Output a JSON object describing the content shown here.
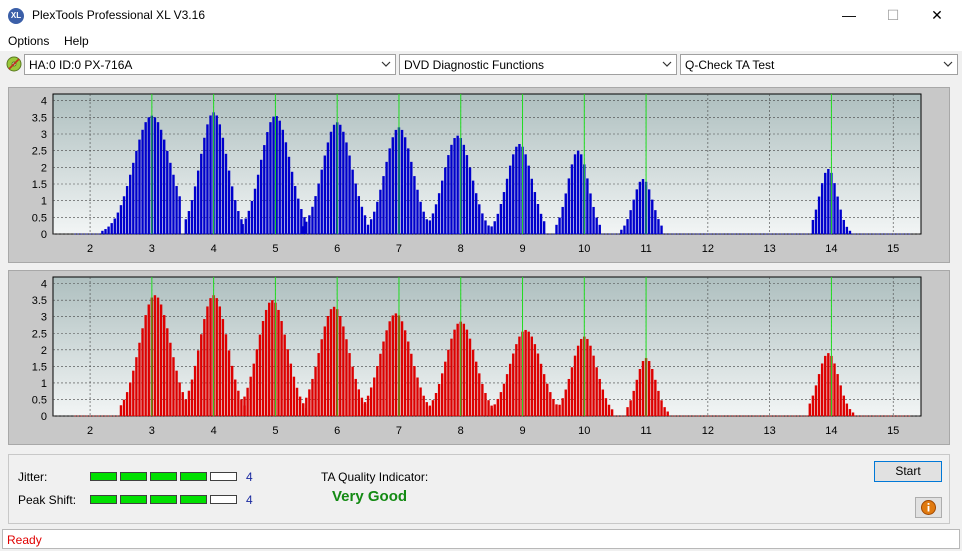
{
  "window": {
    "title": "PlexTools Professional XL V3.16",
    "app_icon_text": "XL"
  },
  "menu": {
    "items": [
      "Options",
      "Help"
    ]
  },
  "toolbar": {
    "drive": "HA:0 ID:0  PX-716A",
    "function": "DVD Diagnostic Functions",
    "test": "Q-Check TA Test"
  },
  "chart_data": [
    {
      "type": "bar",
      "series": [
        {
          "name": "",
          "color": "#0000cc"
        }
      ],
      "x_ticks": [
        2,
        3,
        4,
        5,
        6,
        7,
        8,
        9,
        10,
        11,
        12,
        13,
        14,
        15
      ],
      "y_ticks": [
        "0",
        "0.5",
        "1",
        "1.5",
        "2",
        "2.5",
        "3",
        "3.5",
        "4"
      ],
      "xlim": [
        1.4,
        15.45
      ],
      "ylim": [
        0,
        4.2
      ],
      "groups": [
        {
          "center": 3.0,
          "start": 2.2,
          "end": 3.45,
          "peak": 3.55
        },
        {
          "center": 4.0,
          "start": 3.55,
          "end": 4.47,
          "peak": 3.65
        },
        {
          "center": 5.0,
          "start": 4.47,
          "end": 5.47,
          "peak": 3.55
        },
        {
          "center": 6.0,
          "start": 5.45,
          "end": 6.45,
          "peak": 3.35
        },
        {
          "center": 7.0,
          "start": 6.5,
          "end": 7.45,
          "peak": 3.2
        },
        {
          "center": 7.95,
          "start": 7.5,
          "end": 8.45,
          "peak": 2.95
        },
        {
          "center": 8.95,
          "start": 8.5,
          "end": 9.35,
          "peak": 2.7
        },
        {
          "center": 9.9,
          "start": 9.55,
          "end": 10.25,
          "peak": 2.5
        },
        {
          "center": 10.95,
          "start": 10.6,
          "end": 11.25,
          "peak": 1.65
        },
        {
          "center": 13.95,
          "start": 13.7,
          "end": 14.3,
          "peak": 1.95
        }
      ],
      "green_lines": [
        3,
        4,
        5,
        6,
        7,
        8,
        9,
        10,
        11,
        14
      ]
    },
    {
      "type": "bar",
      "series": [
        {
          "name": "",
          "color": "#dd0000"
        }
      ],
      "x_ticks": [
        2,
        3,
        4,
        5,
        6,
        7,
        8,
        9,
        10,
        11,
        12,
        13,
        14,
        15
      ],
      "y_ticks": [
        "0",
        "0.5",
        "1",
        "1.5",
        "2",
        "2.5",
        "3",
        "3.5",
        "4"
      ],
      "xlim": [
        1.4,
        15.45
      ],
      "ylim": [
        0,
        4.2
      ],
      "groups": [
        {
          "center": 3.05,
          "start": 2.5,
          "end": 3.55,
          "peak": 3.65
        },
        {
          "center": 4.0,
          "start": 3.55,
          "end": 4.5,
          "peak": 3.65
        },
        {
          "center": 4.95,
          "start": 4.5,
          "end": 5.5,
          "peak": 3.5
        },
        {
          "center": 5.95,
          "start": 5.45,
          "end": 6.45,
          "peak": 3.3
        },
        {
          "center": 6.95,
          "start": 6.45,
          "end": 7.5,
          "peak": 3.1
        },
        {
          "center": 8.0,
          "start": 7.5,
          "end": 8.5,
          "peak": 2.85
        },
        {
          "center": 9.05,
          "start": 8.5,
          "end": 9.55,
          "peak": 2.6
        },
        {
          "center": 10.0,
          "start": 9.6,
          "end": 10.45,
          "peak": 2.4
        },
        {
          "center": 11.0,
          "start": 10.7,
          "end": 11.35,
          "peak": 1.75
        },
        {
          "center": 13.95,
          "start": 13.65,
          "end": 14.35,
          "peak": 1.9
        }
      ],
      "green_lines": [
        3,
        4,
        5,
        6,
        7,
        8,
        9,
        10,
        11,
        14
      ]
    }
  ],
  "metrics": {
    "jitter_label": "Jitter:",
    "jitter_value": "4",
    "jitter_level": 4,
    "peak_shift_label": "Peak Shift:",
    "peak_shift_value": "4",
    "peak_shift_level": 4,
    "meter_segments": 5,
    "quality_label": "TA Quality Indicator:",
    "quality_value": "Very Good"
  },
  "buttons": {
    "start": "Start"
  },
  "status": {
    "text": "Ready"
  }
}
